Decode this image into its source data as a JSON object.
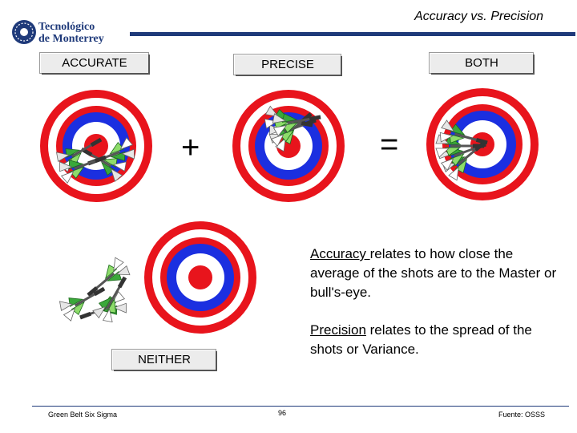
{
  "header": {
    "logo_line1": "Tecnológico",
    "logo_line2": "de Monterrey",
    "title": "Accuracy vs. Precision"
  },
  "labels": {
    "accurate": "ACCURATE",
    "precise": "PRECISE",
    "both": "BOTH",
    "neither": "NEITHER"
  },
  "operators": {
    "plus": "+",
    "equals": "="
  },
  "definitions": {
    "accuracy_term": "Accuracy ",
    "accuracy_text": "relates to how close the average of the shots are to the Master or bull's-eye.",
    "precision_term": "Precision",
    "precision_text": " relates to the spread of the shots or Variance."
  },
  "footer": {
    "left": "Green Belt Six Sigma",
    "page": "96",
    "right": "Fuente: OSSS"
  },
  "colors": {
    "ring_red": "#e8141c",
    "ring_blue": "#1b2fe0",
    "brand_blue": "#1f3a7a"
  }
}
